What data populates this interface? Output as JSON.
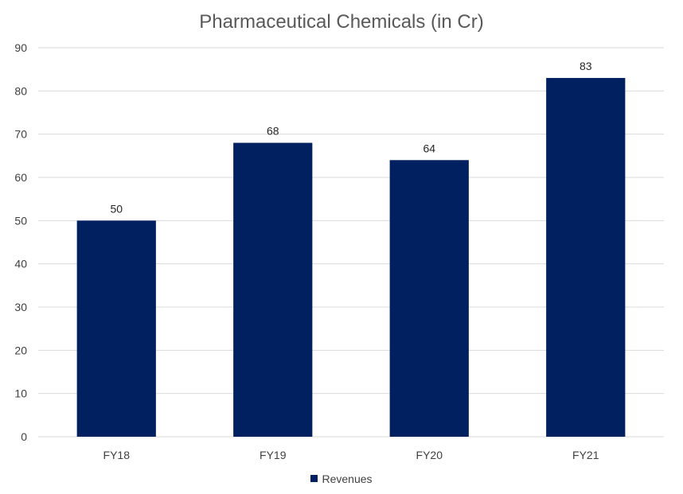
{
  "chart_data": {
    "type": "bar",
    "title": "Pharmaceutical Chemicals (in Cr)",
    "xlabel": "",
    "ylabel": "",
    "categories": [
      "FY18",
      "FY19",
      "FY20",
      "FY21"
    ],
    "series": [
      {
        "name": "Revenues",
        "values": [
          50,
          68,
          64,
          83
        ],
        "color": "#002060"
      }
    ],
    "ylim": [
      0,
      90
    ],
    "yticks": [
      0,
      10,
      20,
      30,
      40,
      50,
      60,
      70,
      80,
      90
    ],
    "grid": true,
    "gridColor": "#d9d9d9",
    "legend": "bottom"
  }
}
